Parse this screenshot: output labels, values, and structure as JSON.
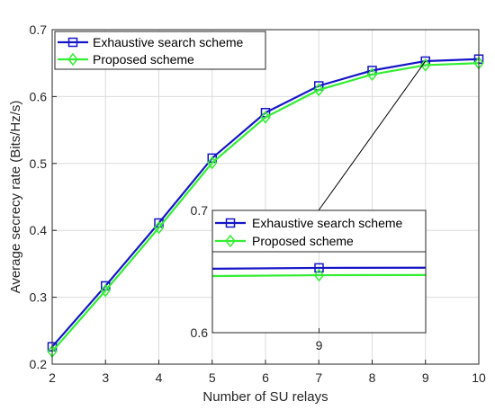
{
  "chart_data": {
    "type": "line",
    "xlabel": "Number of SU relays",
    "ylabel": "Average secrecy rate (Bits/Hz/s)",
    "xlim": [
      2,
      10
    ],
    "ylim": [
      0.2,
      0.7
    ],
    "x_ticks": [
      "2",
      "3",
      "4",
      "5",
      "6",
      "7",
      "8",
      "9",
      "10"
    ],
    "y_ticks": [
      "0.2",
      "0.3",
      "0.4",
      "0.5",
      "0.6",
      "0.7"
    ],
    "grid": true,
    "legend_position": "top-left",
    "x": [
      2,
      3,
      4,
      5,
      6,
      7,
      8,
      9,
      10
    ],
    "series": [
      {
        "name": "Exhaustive search scheme",
        "color": "#1515c8",
        "marker": "square",
        "values": [
          0.226,
          0.317,
          0.411,
          0.508,
          0.576,
          0.616,
          0.639,
          0.653,
          0.656
        ]
      },
      {
        "name": "Proposed scheme",
        "color": "#33ee33",
        "marker": "diamond",
        "values": [
          0.219,
          0.31,
          0.404,
          0.501,
          0.569,
          0.61,
          0.633,
          0.647,
          0.65
        ]
      }
    ],
    "inset": {
      "xlim": [
        8.95,
        9.05
      ],
      "ylim": [
        0.6,
        0.7
      ],
      "x_ticks": [
        "9"
      ],
      "y_ticks": [
        "0.6",
        "0.7"
      ],
      "callout": "zoom on x = 9"
    }
  }
}
